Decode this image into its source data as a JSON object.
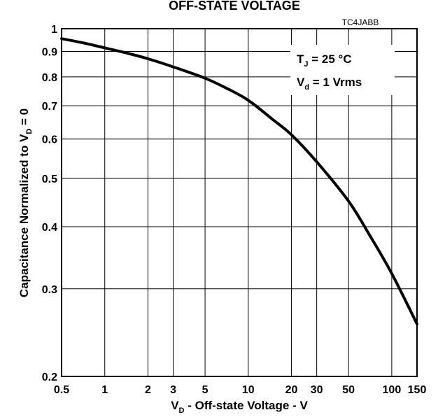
{
  "chart_data": {
    "type": "line",
    "title": "OFF-STATE VOLTAGE",
    "figure_code": "TC4JABB",
    "xlabel": {
      "main": "V",
      "sub": "D",
      "rest": " - Off-state Voltage - V"
    },
    "ylabel": {
      "pre": "Capacitance Normalized to V",
      "sub": "D",
      "post": " = 0"
    },
    "x_scale": "log",
    "y_scale": "log",
    "xlim": [
      0.5,
      150
    ],
    "ylim": [
      0.2,
      1
    ],
    "grid": true,
    "x_ticks": [
      0.5,
      1,
      2,
      3,
      5,
      10,
      20,
      30,
      50,
      100,
      150
    ],
    "x_tick_labels": [
      "0.5",
      "1",
      "2",
      "3",
      "5",
      "10",
      "20",
      "30",
      "50",
      "100",
      "150"
    ],
    "y_ticks": [
      0.2,
      0.3,
      0.4,
      0.5,
      0.6,
      0.7,
      0.8,
      0.9,
      1
    ],
    "y_tick_labels": [
      "0.2",
      "0.3",
      "0.4",
      "0.5",
      "0.6",
      "0.7",
      "0.8",
      "0.9",
      "1"
    ],
    "annotation": {
      "line1_main": "T",
      "line1_sub": "J",
      "line1_rest": " = 25 °C",
      "line2_main": "V",
      "line2_sub": "d",
      "line2_rest": " = 1 Vrms"
    },
    "series": [
      {
        "x": [
          0.5,
          0.7,
          1,
          1.5,
          2,
          3,
          5,
          7,
          10,
          15,
          20,
          30,
          50,
          70,
          100,
          150
        ],
        "y": [
          0.955,
          0.937,
          0.915,
          0.89,
          0.87,
          0.838,
          0.795,
          0.76,
          0.718,
          0.655,
          0.612,
          0.54,
          0.45,
          0.385,
          0.322,
          0.255
        ]
      }
    ]
  }
}
